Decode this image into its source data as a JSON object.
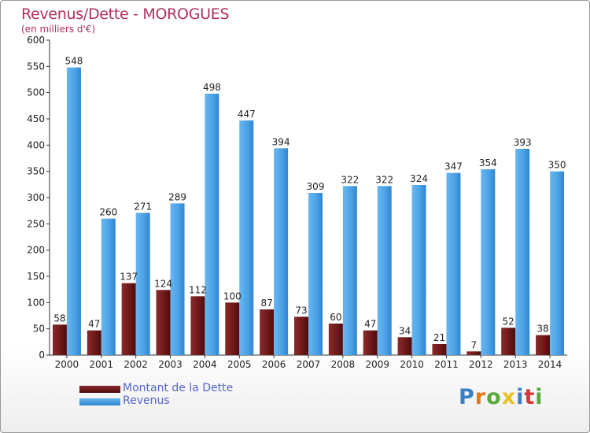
{
  "title": "Revenus/Dette - MOROGUES",
  "subtitle": "(en milliers d'€)",
  "logo": {
    "text": "Proxiti",
    "letter_colors": [
      "#3a7fc8",
      "#e07820",
      "#5aa83a",
      "#e8c020",
      "#3a7fc8",
      "#d23a3a",
      "#5aa83a"
    ]
  },
  "legend": [
    {
      "label": "Montant de la Dette",
      "color": "#6e1a1a"
    },
    {
      "label": "Revenus",
      "color": "#4da3e6"
    }
  ],
  "chart_data": {
    "type": "bar",
    "categories": [
      "2000",
      "2001",
      "2002",
      "2003",
      "2004",
      "2005",
      "2006",
      "2007",
      "2008",
      "2009",
      "2010",
      "2011",
      "2012",
      "2013",
      "2014"
    ],
    "series": [
      {
        "name": "Montant de la Dette",
        "color": "#6e1a1a",
        "values": [
          58,
          47,
          137,
          124,
          112,
          100,
          87,
          73,
          60,
          47,
          34,
          21,
          7,
          52,
          38
        ]
      },
      {
        "name": "Revenus",
        "color": "#4da3e6",
        "values": [
          548,
          260,
          271,
          289,
          498,
          447,
          394,
          309,
          322,
          322,
          324,
          347,
          354,
          393,
          350
        ]
      }
    ],
    "ylim": [
      0,
      600
    ],
    "yticks": [
      0,
      50,
      100,
      150,
      200,
      250,
      300,
      350,
      400,
      450,
      500,
      550,
      600
    ],
    "grid": false,
    "legend_position": "bottom-left"
  }
}
